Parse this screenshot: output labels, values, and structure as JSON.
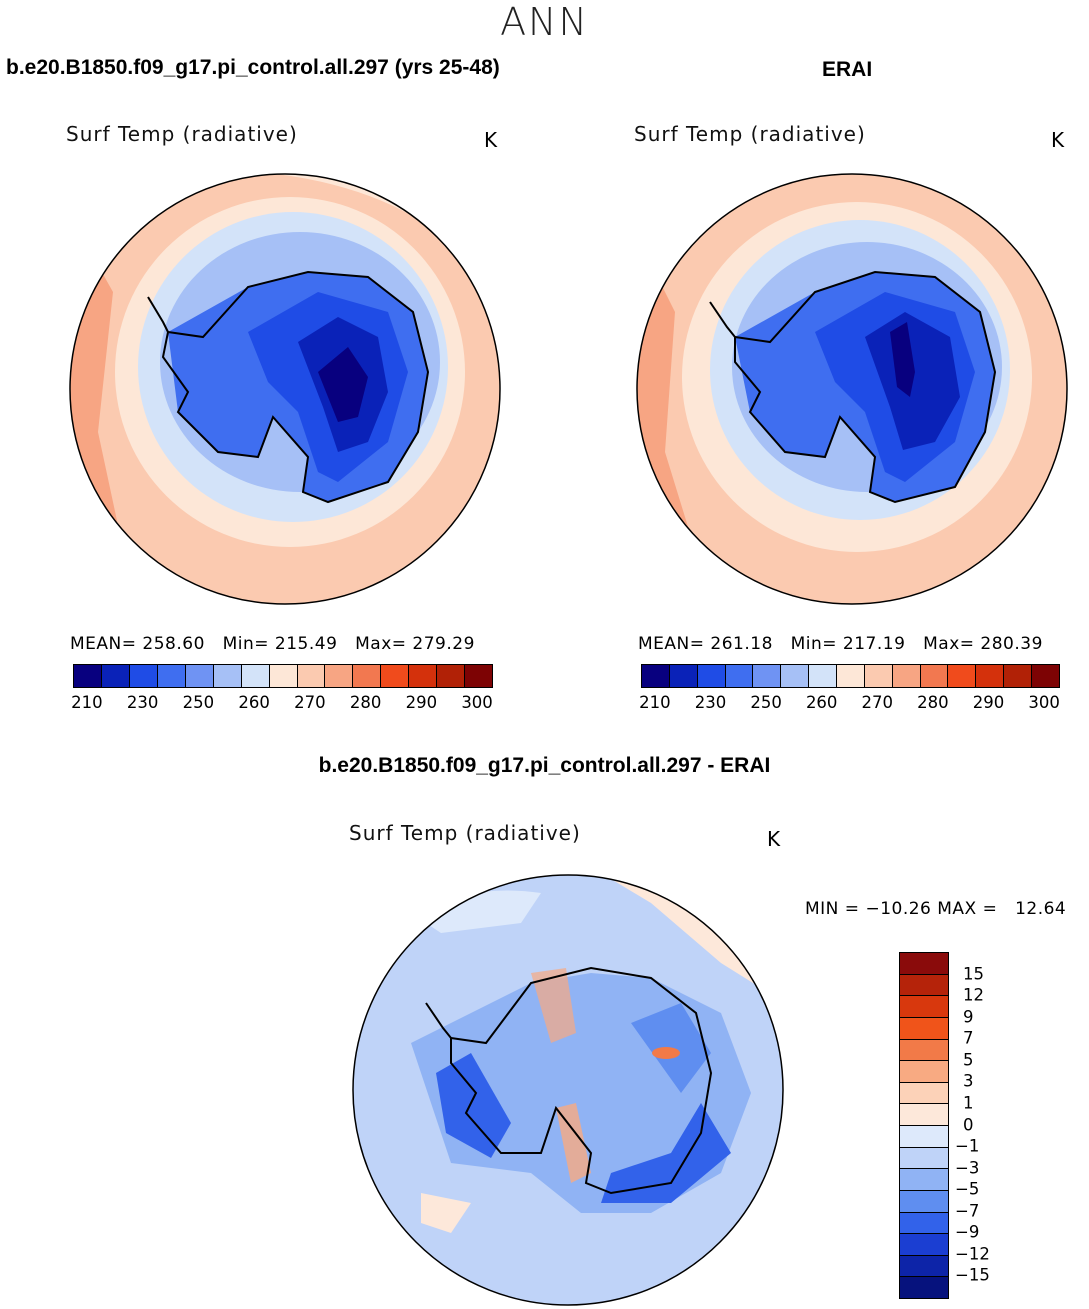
{
  "page": {
    "title": "ANN"
  },
  "panels": [
    {
      "title": "b.e20.B1850.f09_g17.pi_control.all.297 (yrs 25-48)",
      "field": "Surf Temp (radiative)",
      "unit": "K",
      "stats": "MEAN= 258.60   Min= 215.49   Max= 279.29"
    },
    {
      "title": "ERAI",
      "field": "Surf Temp (radiative)",
      "unit": "K",
      "stats": "MEAN= 261.18   Min= 217.19   Max= 280.39"
    },
    {
      "title": "b.e20.B1850.f09_g17.pi_control.all.297 - ERAI",
      "field": "Surf Temp (radiative)",
      "unit": "K",
      "stats": "MIN = −10.26 MAX =   12.64"
    }
  ],
  "temp_colorbar": {
    "ticks": [
      "210",
      "230",
      "250",
      "260",
      "270",
      "280",
      "290",
      "300"
    ],
    "colors": [
      "#08007f",
      "#0a22b8",
      "#1f4ce6",
      "#3f6ef0",
      "#6f93f3",
      "#a6c0f6",
      "#d3e3f9",
      "#fde7d7",
      "#fbcab0",
      "#f7a583",
      "#f27850",
      "#f04b1c",
      "#d4310c",
      "#b12106",
      "#7d0304"
    ]
  },
  "diff_colorbar": {
    "ticks": [
      "15",
      "12",
      "9",
      "7",
      "5",
      "3",
      "1",
      "0",
      "−1",
      "−3",
      "−5",
      "−7",
      "−9",
      "−12",
      "−15"
    ],
    "colors": [
      "#8a0b0b",
      "#b5230a",
      "#d8380d",
      "#f0541a",
      "#f27a48",
      "#f8aa82",
      "#fcd2b8",
      "#fde8da",
      "#dde9fb",
      "#bfd3f8",
      "#90b3f4",
      "#5f8ef0",
      "#3262ea",
      "#1b3ed2",
      "#0d24a8",
      "#06127d"
    ]
  },
  "chart_data": [
    {
      "type": "heatmap",
      "title": "Surf Temp (radiative)",
      "subtitle": "b.e20.B1850.f09_g17.pi_control.all.297 (yrs 25-48)",
      "unit": "K",
      "mean": 258.6,
      "min": 215.49,
      "max": 279.29,
      "levels": [
        210,
        220,
        230,
        240,
        250,
        255,
        260,
        265,
        270,
        275,
        280,
        285,
        290,
        295,
        300
      ]
    },
    {
      "type": "heatmap",
      "title": "Surf Temp (radiative)",
      "subtitle": "ERAI",
      "unit": "K",
      "mean": 261.18,
      "min": 217.19,
      "max": 280.39,
      "levels": [
        210,
        220,
        230,
        240,
        250,
        255,
        260,
        265,
        270,
        275,
        280,
        285,
        290,
        295,
        300
      ]
    },
    {
      "type": "heatmap",
      "title": "Surf Temp (radiative)",
      "subtitle": "b.e20.B1850.f09_g17.pi_control.all.297 - ERAI",
      "unit": "K",
      "min": -10.26,
      "max": 12.64,
      "levels": [
        -15,
        -12,
        -9,
        -7,
        -5,
        -3,
        -1,
        0,
        1,
        3,
        5,
        7,
        9,
        12,
        15
      ]
    }
  ]
}
